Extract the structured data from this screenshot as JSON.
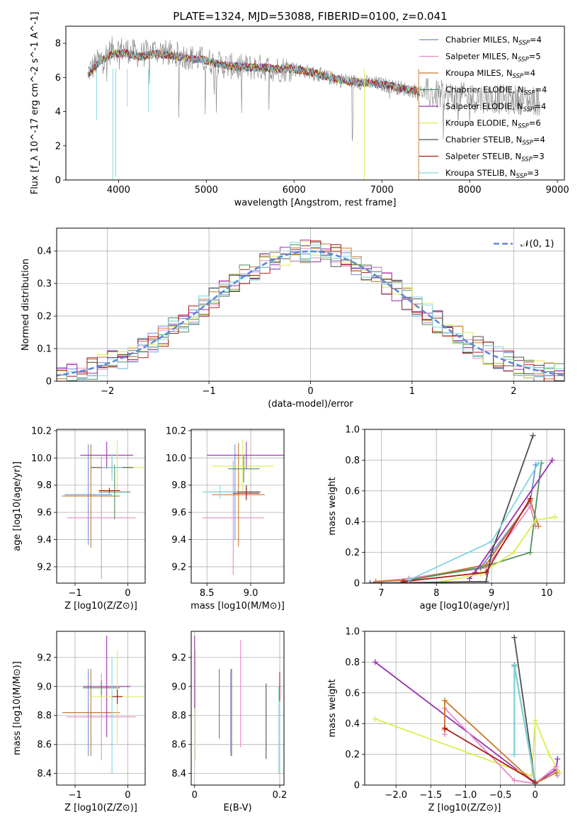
{
  "title": "PLATE=1324, MJD=53088, FIBERID=0100, z=0.041",
  "colors": {
    "Chabrier MILES": "#6b8fd6",
    "Salpeter MILES": "#e889c6",
    "Kroupa MILES": "#c8782a",
    "Chabrier ELODIE": "#4f8f5f",
    "Salpeter ELODIE": "#9b2fb0",
    "Kroupa ELODIE": "#d9ee4e",
    "Chabrier STELIB": "#505050",
    "Salpeter STELIB": "#b01818",
    "Kroupa STELIB": "#7fd6e0"
  },
  "chart_data": [
    {
      "id": "spectrum",
      "type": "line",
      "xlabel": "wavelength [Angstrom, rest frame]",
      "ylabel": "Flux [f_λ 10^-17 erg cm^-2 s^-1 A^-1]",
      "xlim": [
        3400,
        9080
      ],
      "ylim": [
        0,
        9
      ],
      "xticks": [
        4000,
        5000,
        6000,
        7000,
        8000,
        9000
      ],
      "yticks": [
        0,
        2,
        4,
        6,
        8
      ],
      "data_color": "#808080",
      "data_x": [
        3650,
        3800,
        3950,
        4100,
        4250,
        4400,
        4600,
        4800,
        5000,
        5200,
        5400,
        5600,
        5800,
        6000,
        6200,
        6400,
        6600,
        6800,
        7000,
        7200,
        7400,
        7600,
        7800,
        8000,
        8200,
        8400,
        8600,
        8800
      ],
      "data_y": [
        6.3,
        7.1,
        7.7,
        7.6,
        7.3,
        7.6,
        7.4,
        7.2,
        7.0,
        6.7,
        6.6,
        6.6,
        6.5,
        6.5,
        6.3,
        6.0,
        5.8,
        5.7,
        5.6,
        5.4,
        5.2,
        5.0,
        4.9,
        4.8,
        4.8,
        4.7,
        4.7,
        4.6
      ],
      "model_x": [
        3650,
        3800,
        3950,
        4100,
        4250,
        4400,
        4600,
        4800,
        5000,
        5200,
        5400,
        5600,
        5800,
        6000,
        6200,
        6400,
        6600,
        6800,
        7000,
        7200,
        7400
      ],
      "model_y": [
        6.2,
        7.0,
        7.4,
        7.4,
        7.2,
        7.4,
        7.3,
        7.1,
        7.0,
        6.7,
        6.6,
        6.6,
        6.5,
        6.5,
        6.3,
        6.0,
        5.8,
        5.7,
        5.6,
        5.4,
        5.2
      ],
      "legend": [
        {
          "name": "Chabrier MILES",
          "label": "Chabrier MILES, N",
          "sub": "SSP",
          "count": "=4"
        },
        {
          "name": "Salpeter MILES",
          "label": "Salpeter MILES, N",
          "sub": "SSP",
          "count": "=5"
        },
        {
          "name": "Kroupa MILES",
          "label": "Kroupa MILES, N",
          "sub": "SSP",
          "count": "=4"
        },
        {
          "name": "Chabrier ELODIE",
          "label": "Chabrier ELODIE, N",
          "sub": "SSP",
          "count": "=4"
        },
        {
          "name": "Salpeter ELODIE",
          "label": "Salpeter ELODIE, N",
          "sub": "SSP",
          "count": "=4"
        },
        {
          "name": "Kroupa ELODIE",
          "label": "Kroupa ELODIE, N",
          "sub": "SSP",
          "count": "=6"
        },
        {
          "name": "Chabrier STELIB",
          "label": "Chabrier STELIB, N",
          "sub": "SSP",
          "count": "=4"
        },
        {
          "name": "Salpeter STELIB",
          "label": "Salpeter STELIB, N",
          "sub": "SSP",
          "count": "=3"
        },
        {
          "name": "Kroupa STELIB",
          "label": "Kroupa STELIB, N",
          "sub": "SSP",
          "count": "=3"
        }
      ],
      "legend_position": "upper-right"
    },
    {
      "id": "residuals",
      "type": "step",
      "xlabel": "(data-model)/error",
      "ylabel": "Normed distribution",
      "xlim": [
        -2.5,
        2.5
      ],
      "ylim": [
        0,
        0.47
      ],
      "xticks": [
        -2,
        -1,
        0,
        1,
        2
      ],
      "yticks": [
        0.0,
        0.1,
        0.2,
        0.3,
        0.4
      ],
      "grid": true,
      "bin_width": 0.1,
      "gaussian_label": "𝒩(0, 1)",
      "gaussian_color": "#5b8bd9",
      "legend_position": "upper-right"
    },
    {
      "id": "z-age",
      "type": "errorbar",
      "xlabel": "Z [log10(Z/Z⊙)]",
      "ylabel": "age [log10(age/yr)]",
      "xlim": [
        -1.35,
        0.33
      ],
      "ylim": [
        9.08,
        10.21
      ],
      "xticks": [
        -1,
        0
      ],
      "yticks": [
        9.2,
        9.4,
        9.6,
        9.8,
        10.0,
        10.2
      ],
      "grid": true,
      "points": [
        {
          "model": "Chabrier MILES",
          "x": -0.75,
          "xerr": 0.45,
          "y": 9.73,
          "yerr": 0.37
        },
        {
          "model": "Salpeter MILES",
          "x": -0.5,
          "xerr": 0.65,
          "y": 9.56,
          "yerr": 0.45
        },
        {
          "model": "Kroupa MILES",
          "x": -0.7,
          "xerr": 0.55,
          "y": 9.72,
          "yerr": 0.38
        },
        {
          "model": "Chabrier ELODIE",
          "x": -0.25,
          "xerr": 0.3,
          "y": 9.75,
          "yerr": 0.2
        },
        {
          "model": "Salpeter ELODIE",
          "x": -0.4,
          "xerr": 0.5,
          "y": 10.02,
          "yerr": 0.1
        },
        {
          "model": "Kroupa ELODIE",
          "x": -0.2,
          "xerr": 0.5,
          "y": 9.93,
          "yerr": 0.2
        },
        {
          "model": "Chabrier STELIB",
          "x": -0.3,
          "xerr": 0.4,
          "y": 9.93,
          "yerr": 0.05
        },
        {
          "model": "Salpeter STELIB",
          "x": -0.35,
          "xerr": 0.2,
          "y": 9.76,
          "yerr": 0.02
        },
        {
          "model": "Kroupa STELIB",
          "x": -0.3,
          "xerr": 0.2,
          "y": 9.93,
          "yerr": 0.1
        }
      ]
    },
    {
      "id": "mass-age",
      "type": "errorbar",
      "xlabel": "mass [log10(M/M⊙)]",
      "ylabel": "",
      "xlim": [
        8.32,
        9.38
      ],
      "ylim": [
        9.08,
        10.21
      ],
      "xticks": [
        8.5,
        9.0
      ],
      "yticks": [
        9.2,
        9.4,
        9.6,
        9.8,
        10.0,
        10.2
      ],
      "grid": true,
      "points": [
        {
          "model": "Chabrier MILES",
          "x": 8.82,
          "xerr": 0.3,
          "y": 9.75,
          "yerr": 0.35
        },
        {
          "model": "Salpeter MILES",
          "x": 8.8,
          "xerr": 0.35,
          "y": 9.56,
          "yerr": 0.42
        },
        {
          "model": "Kroupa MILES",
          "x": 8.86,
          "xerr": 0.3,
          "y": 9.73,
          "yerr": 0.38
        },
        {
          "model": "Chabrier ELODIE",
          "x": 8.92,
          "xerr": 0.18,
          "y": 9.92,
          "yerr": 0.1
        },
        {
          "model": "Salpeter ELODIE",
          "x": 8.95,
          "xerr": 0.45,
          "y": 10.02,
          "yerr": 0.1
        },
        {
          "model": "Kroupa ELODIE",
          "x": 8.91,
          "xerr": 0.35,
          "y": 9.94,
          "yerr": 0.2
        },
        {
          "model": "Chabrier STELIB",
          "x": 8.95,
          "xerr": 0.15,
          "y": 9.75,
          "yerr": 0.05
        },
        {
          "model": "Salpeter STELIB",
          "x": 8.95,
          "xerr": 0.15,
          "y": 9.74,
          "yerr": 0.05
        },
        {
          "model": "Kroupa STELIB",
          "x": 8.65,
          "xerr": 0.2,
          "y": 9.75,
          "yerr": 0.05
        }
      ]
    },
    {
      "id": "age-weight",
      "type": "line",
      "xlabel": "age [log10(age/yr)]",
      "ylabel": "mass weight",
      "xlim": [
        6.7,
        10.32
      ],
      "ylim": [
        0,
        1.0
      ],
      "xticks": [
        7,
        8,
        9,
        10
      ],
      "yticks": [
        0.0,
        0.2,
        0.4,
        0.6,
        0.8,
        1.0
      ],
      "grid": true,
      "series": [
        {
          "model": "Chabrier MILES",
          "x": [
            6.8,
            7.5,
            8.8,
            9.7,
            9.8
          ],
          "y": [
            0.0,
            0.03,
            0.1,
            0.53,
            0.77
          ]
        },
        {
          "model": "Salpeter MILES",
          "x": [
            6.9,
            7.5,
            8.9,
            9.7,
            9.8
          ],
          "y": [
            0.01,
            0.03,
            0.1,
            0.5,
            0.37
          ]
        },
        {
          "model": "Kroupa MILES",
          "x": [
            6.9,
            7.5,
            8.9,
            9.7,
            9.85
          ],
          "y": [
            0.01,
            0.02,
            0.12,
            0.54,
            0.37
          ]
        },
        {
          "model": "Chabrier ELODIE",
          "x": [
            7.5,
            8.8,
            9.7,
            9.9
          ],
          "y": [
            0.02,
            0.1,
            0.2,
            0.78
          ]
        },
        {
          "model": "Salpeter ELODIE",
          "x": [
            8.6,
            8.7,
            10.1
          ],
          "y": [
            0.03,
            0.07,
            0.8
          ]
        },
        {
          "model": "Kroupa ELODIE",
          "x": [
            8.1,
            8.8,
            9.4,
            9.8,
            10.15
          ],
          "y": [
            0.01,
            0.06,
            0.2,
            0.41,
            0.43
          ]
        },
        {
          "model": "Chabrier STELIB",
          "x": [
            6.8,
            8.9,
            9.0,
            9.75
          ],
          "y": [
            0.0,
            0.01,
            0.2,
            0.96
          ]
        },
        {
          "model": "Salpeter STELIB",
          "x": [
            7.4,
            8.9,
            9.7
          ],
          "y": [
            0.01,
            0.07,
            0.55
          ]
        },
        {
          "model": "Kroupa STELIB",
          "x": [
            7.5,
            9.0,
            9.85
          ],
          "y": [
            0.02,
            0.27,
            0.78
          ]
        }
      ]
    },
    {
      "id": "z-mass",
      "type": "errorbar",
      "xlabel": "Z [log10(Z/Z⊙)]",
      "ylabel": "mass [log10(M/M⊙)]",
      "xlim": [
        -1.35,
        0.33
      ],
      "ylim": [
        8.32,
        9.38
      ],
      "xticks": [
        -1,
        0
      ],
      "yticks": [
        8.4,
        8.6,
        8.8,
        9.0,
        9.2
      ],
      "grid": true,
      "points": [
        {
          "model": "Chabrier MILES",
          "x": -0.75,
          "xerr": 0.45,
          "y": 8.82,
          "yerr": 0.3
        },
        {
          "model": "Salpeter MILES",
          "x": -0.5,
          "xerr": 0.65,
          "y": 8.79,
          "yerr": 0.3
        },
        {
          "model": "Kroupa MILES",
          "x": -0.7,
          "xerr": 0.55,
          "y": 8.82,
          "yerr": 0.3
        },
        {
          "model": "Chabrier ELODIE",
          "x": -0.5,
          "xerr": 0.35,
          "y": 8.99,
          "yerr": 0.05
        },
        {
          "model": "Salpeter ELODIE",
          "x": -0.4,
          "xerr": 0.45,
          "y": 9.0,
          "yerr": 0.35
        },
        {
          "model": "Kroupa ELODIE",
          "x": -0.2,
          "xerr": 0.5,
          "y": 8.93,
          "yerr": 0.32
        },
        {
          "model": "Chabrier STELIB",
          "x": -0.2,
          "xerr": 0.1,
          "y": 8.93,
          "yerr": 0.05
        },
        {
          "model": "Salpeter STELIB",
          "x": -0.2,
          "xerr": 0.1,
          "y": 8.93,
          "yerr": 0.05
        },
        {
          "model": "Kroupa STELIB",
          "x": -0.3,
          "xerr": 0.05,
          "y": 8.8,
          "yerr": 0.4
        }
      ]
    },
    {
      "id": "ebv-mass",
      "type": "errorbar",
      "xlabel": "E(B-V)",
      "ylabel": "",
      "xlim": [
        -0.008,
        0.21
      ],
      "ylim": [
        8.32,
        9.38
      ],
      "xticks": [
        0.0,
        0.2
      ],
      "yticks": [
        8.4,
        8.6,
        8.8,
        9.0,
        9.2
      ],
      "grid": true,
      "points": [
        {
          "model": "Chabrier MILES",
          "x": 0.085,
          "xerr": 0,
          "y": 8.82,
          "yerr": 0.3
        },
        {
          "model": "Salpeter MILES",
          "x": 0.108,
          "xerr": 0,
          "y": 8.95,
          "yerr": 0.37
        },
        {
          "model": "Kroupa MILES",
          "x": 0.087,
          "xerr": 0,
          "y": 8.82,
          "yerr": 0.3
        },
        {
          "model": "Chabrier ELODIE",
          "x": 0.058,
          "xerr": 0,
          "y": 8.88,
          "yerr": 0.24
        },
        {
          "model": "Salpeter ELODIE",
          "x": 0.0,
          "xerr": 0,
          "y": 9.1,
          "yerr": 0.25
        },
        {
          "model": "Kroupa ELODIE",
          "x": 0.002,
          "xerr": 0,
          "y": 8.87,
          "yerr": 0.38
        },
        {
          "model": "Chabrier STELIB",
          "x": 0.168,
          "xerr": 0,
          "y": 8.76,
          "yerr": 0.26
        },
        {
          "model": "Salpeter STELIB",
          "x": 0.2,
          "xerr": 0,
          "y": 9.0,
          "yerr": 0.1
        },
        {
          "model": "Kroupa STELIB",
          "x": 0.198,
          "xerr": 0,
          "y": 8.7,
          "yerr": 0.3
        }
      ]
    },
    {
      "id": "z-weight",
      "type": "line",
      "xlabel": "Z [log10(Z/Z⊙)]",
      "ylabel": "mass weight",
      "xlim": [
        -2.45,
        0.42
      ],
      "ylim": [
        0,
        1.0
      ],
      "xticks": [
        -2.0,
        -1.5,
        -1.0,
        -0.5,
        0.0
      ],
      "yticks": [
        0.0,
        0.2,
        0.4,
        0.6,
        0.8,
        1.0
      ],
      "grid": true,
      "series": [
        {
          "model": "Salpeter ELODIE",
          "x": [
            -2.3,
            0.0,
            0.3,
            0.32
          ],
          "y": [
            0.8,
            0.01,
            0.1,
            0.17
          ]
        },
        {
          "model": "Kroupa ELODIE",
          "x": [
            -2.3,
            -0.05,
            0.0,
            0.2,
            0.35
          ],
          "y": [
            0.43,
            0.06,
            0.42,
            0.2,
            0.08
          ]
        },
        {
          "model": "Salpeter MILES",
          "x": [
            -1.3,
            -1.3,
            -0.3,
            0.0,
            0.3,
            0.32
          ],
          "y": [
            0.33,
            0.5,
            0.03,
            0.01,
            0.12,
            0.06
          ]
        },
        {
          "model": "Kroupa MILES",
          "x": [
            -1.3,
            -1.3,
            0.0,
            0.3
          ],
          "y": [
            0.36,
            0.55,
            0.01,
            0.08
          ]
        },
        {
          "model": "Chabrier MILES",
          "x": [
            -0.3,
            -0.3,
            0.0
          ],
          "y": [
            0.2,
            0.77,
            0.01
          ]
        },
        {
          "model": "Chabrier ELODIE",
          "x": [
            -0.3,
            -0.3,
            0.0
          ],
          "y": [
            0.2,
            0.78,
            0.01
          ]
        },
        {
          "model": "Chabrier STELIB",
          "x": [
            -0.3,
            0.0,
            0.0
          ],
          "y": [
            0.96,
            0.01,
            0.02
          ]
        },
        {
          "model": "Kroupa STELIB",
          "x": [
            -0.3,
            -0.3,
            0.0
          ],
          "y": [
            0.2,
            0.77,
            0.02
          ]
        },
        {
          "model": "Salpeter STELIB",
          "x": [
            -1.3,
            0.0
          ],
          "y": [
            0.37,
            0.02
          ]
        }
      ]
    }
  ]
}
